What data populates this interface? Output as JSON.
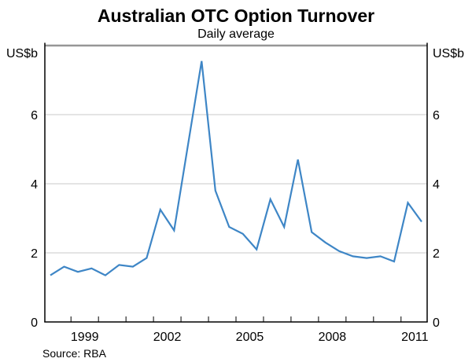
{
  "title": "Australian OTC Option Turnover",
  "subtitle": "Daily average",
  "left_axis_unit": "US$b",
  "right_axis_unit": "US$b",
  "source": "Source: RBA",
  "colors": {
    "line": "#3e86c6",
    "grid": "#c8c8c8",
    "top_border": "#969696",
    "axis": "#000000",
    "text": "#000000",
    "background": "#ffffff"
  },
  "chart_data": {
    "type": "line",
    "title": "Australian OTC Option Turnover",
    "subtitle": "Daily average",
    "unit": "US$b",
    "x": [
      1998.25,
      1998.75,
      1999.25,
      1999.75,
      2000.25,
      2000.75,
      2001.25,
      2001.75,
      2002.25,
      2002.75,
      2003.25,
      2003.75,
      2004.25,
      2004.75,
      2005.25,
      2005.75,
      2006.25,
      2006.75,
      2007.25,
      2007.75,
      2008.25,
      2008.75,
      2009.25,
      2009.75,
      2010.25,
      2010.75,
      2011.25,
      2011.75
    ],
    "values": [
      1.35,
      1.6,
      1.45,
      1.55,
      1.35,
      1.65,
      1.6,
      1.85,
      3.25,
      2.65,
      5.1,
      7.55,
      3.8,
      2.75,
      2.55,
      2.1,
      3.55,
      2.75,
      4.7,
      2.6,
      2.3,
      2.05,
      1.9,
      1.85,
      1.9,
      1.75,
      3.45,
      2.9
    ],
    "xlim": [
      1998.05,
      2011.95
    ],
    "ylim": [
      0,
      8
    ],
    "y_ticks": [
      0,
      2,
      4,
      6
    ],
    "x_tick_years": [
      1999,
      2000,
      2001,
      2002,
      2003,
      2004,
      2005,
      2006,
      2007,
      2008,
      2009,
      2010,
      2011
    ],
    "x_tick_labels": [
      "1999",
      "2002",
      "2005",
      "2008",
      "2011"
    ],
    "x_label_positions": [
      1999.5,
      2002.5,
      2005.5,
      2008.5,
      2011.5
    ],
    "grid": "horizontal",
    "legend": "none"
  }
}
